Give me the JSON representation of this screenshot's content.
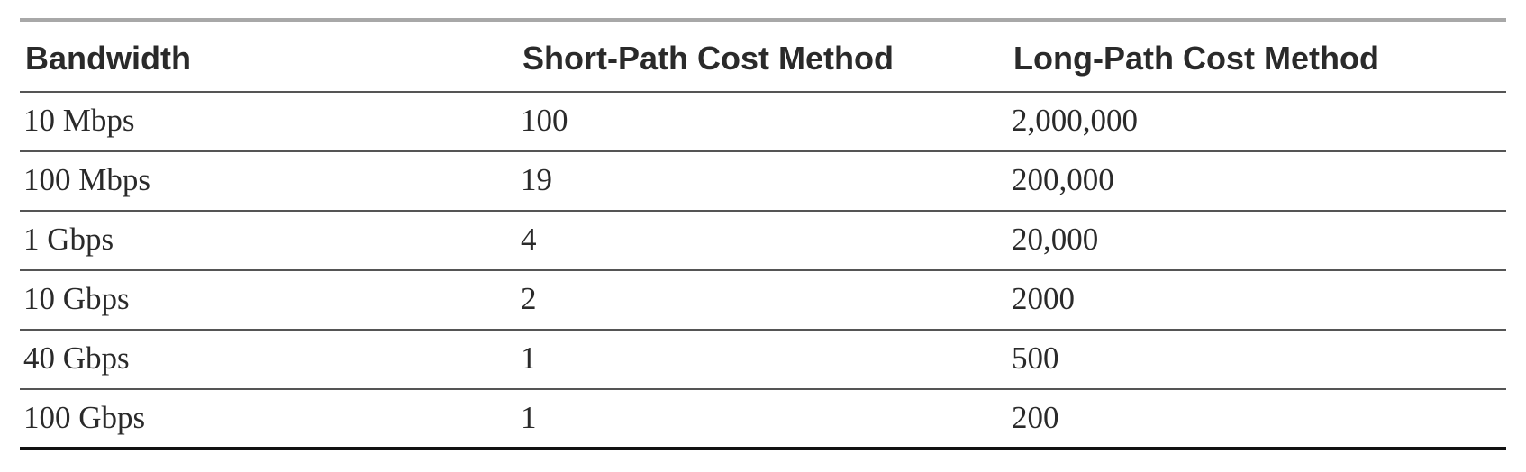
{
  "table": {
    "headers": [
      "Bandwidth",
      "Short-Path Cost Method",
      "Long-Path Cost Method"
    ],
    "rows": [
      [
        "10 Mbps",
        "100",
        "2,000,000"
      ],
      [
        "100 Mbps",
        "19",
        "200,000"
      ],
      [
        "1 Gbps",
        "4",
        "20,000"
      ],
      [
        "10 Gbps",
        "2",
        "2000"
      ],
      [
        "40 Gbps",
        "1",
        "500"
      ],
      [
        "100 Gbps",
        "1",
        "200"
      ]
    ]
  }
}
